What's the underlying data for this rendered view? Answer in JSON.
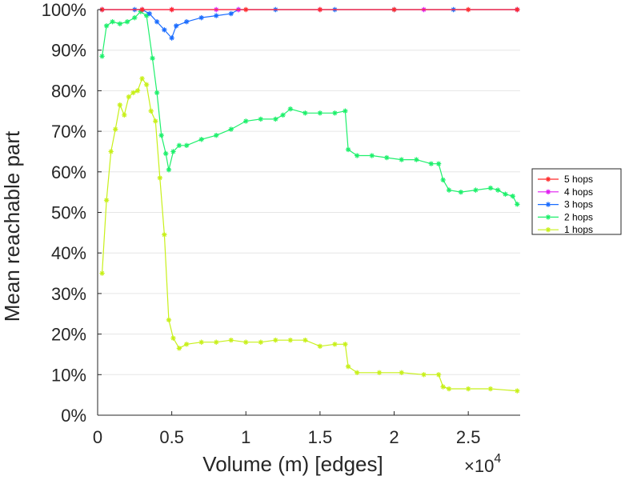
{
  "chart_data": {
    "type": "line",
    "title": "",
    "xlabel": "Volume (m) [edges]",
    "ylabel": "Mean reachable part",
    "x_multiplier_label": "×10",
    "x_multiplier_exponent": "4",
    "xlim": [
      0,
      28500
    ],
    "ylim": [
      0,
      100
    ],
    "x_ticks": [
      0,
      5000,
      10000,
      15000,
      20000,
      25000
    ],
    "x_tick_labels": [
      "0",
      "0.5",
      "1",
      "1.5",
      "2",
      "2.5"
    ],
    "y_ticks": [
      0,
      10,
      20,
      30,
      40,
      50,
      60,
      70,
      80,
      90,
      100
    ],
    "y_tick_labels": [
      "0%",
      "10%",
      "20%",
      "30%",
      "40%",
      "50%",
      "60%",
      "70%",
      "80%",
      "90%",
      "100%"
    ],
    "grid": "horizontal",
    "legend_position": "right",
    "marker": "asterisk",
    "series": [
      {
        "name": "5 hops",
        "color": "#ff2a2a",
        "x": [
          300,
          3000,
          5000,
          10000,
          15000,
          20000,
          25000,
          28300
        ],
        "y": [
          100,
          100,
          100,
          100,
          100,
          100,
          100,
          100
        ]
      },
      {
        "name": "4 hops",
        "color": "#e01cf0",
        "x": [
          300,
          3000,
          5000,
          8000,
          9500,
          15000,
          22000,
          28300
        ],
        "y": [
          100,
          100,
          100,
          100,
          100,
          100,
          100,
          100
        ]
      },
      {
        "name": "3 hops",
        "color": "#1a6cff",
        "x": [
          300,
          2500,
          3000,
          3500,
          4000,
          4500,
          5000,
          5300,
          6000,
          7000,
          8000,
          9000,
          9500,
          12000,
          16000,
          20000,
          24000,
          28300
        ],
        "y": [
          100,
          100,
          100,
          99,
          97,
          95,
          93,
          96,
          97,
          98,
          98.5,
          99,
          100,
          100,
          100,
          100,
          100,
          100
        ]
      },
      {
        "name": "2 hops",
        "color": "#1ef06c",
        "x": [
          300,
          600,
          1000,
          1500,
          2000,
          2500,
          2900,
          3300,
          3700,
          4000,
          4300,
          4600,
          4800,
          5100,
          5500,
          6000,
          7000,
          8000,
          9000,
          10000,
          11000,
          12000,
          12500,
          13000,
          14000,
          15000,
          16000,
          16700,
          16900,
          17500,
          18500,
          19500,
          20500,
          21500,
          22500,
          23000,
          23300,
          23700,
          24500,
          25500,
          26500,
          27000,
          27500,
          28000,
          28300
        ],
        "y": [
          88.5,
          96,
          97,
          96.5,
          97,
          98,
          99.5,
          98.5,
          88,
          79.5,
          69,
          64.5,
          60.5,
          65,
          66.5,
          66.5,
          68,
          69,
          70.5,
          72.5,
          73,
          73,
          74,
          75.5,
          74.5,
          74.5,
          74.5,
          75,
          65.5,
          64,
          64,
          63.5,
          63,
          63,
          62,
          62,
          58,
          55.5,
          55,
          55.5,
          56,
          55.5,
          54.5,
          54,
          52
        ]
      },
      {
        "name": "1 hops",
        "color": "#c8f01a",
        "x": [
          300,
          600,
          900,
          1200,
          1500,
          1800,
          2100,
          2400,
          2700,
          3000,
          3300,
          3600,
          3900,
          4200,
          4500,
          4800,
          5100,
          5500,
          6000,
          7000,
          8000,
          9000,
          10000,
          11000,
          12000,
          13000,
          14000,
          15000,
          16000,
          16700,
          16900,
          17500,
          19000,
          20500,
          22000,
          23000,
          23300,
          23700,
          25000,
          26500,
          28300
        ],
        "y": [
          35,
          53,
          65,
          70.5,
          76.5,
          74,
          78.5,
          79.5,
          80,
          83,
          81.5,
          75,
          72.5,
          58.5,
          44.5,
          23.5,
          19,
          16.5,
          17.5,
          18,
          18,
          18.5,
          18,
          18,
          18.5,
          18.5,
          18.5,
          17,
          17.5,
          17.5,
          12,
          10.5,
          10.5,
          10.5,
          10,
          10,
          7,
          6.5,
          6.5,
          6.5,
          6
        ]
      }
    ]
  }
}
